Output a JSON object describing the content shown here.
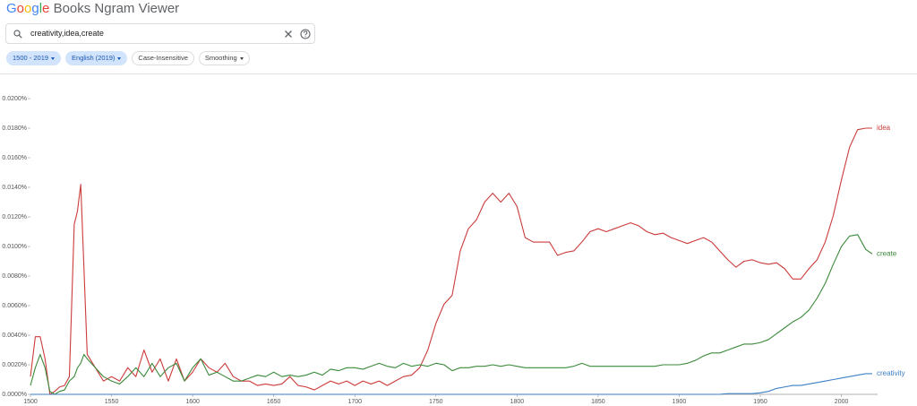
{
  "header": {
    "logo": "Google",
    "product": "Books Ngram Viewer"
  },
  "search": {
    "query": "creativity,idea,create"
  },
  "filters": [
    "1500 - 2019",
    "English (2019)",
    "Case-Insensitive",
    "Smoothing"
  ],
  "chart_data": {
    "type": "line",
    "x": [
      1500,
      1503,
      1506,
      1509,
      1512,
      1515,
      1518,
      1521,
      1524,
      1527,
      1529,
      1531,
      1533,
      1535,
      1540,
      1545,
      1550,
      1555,
      1560,
      1565,
      1570,
      1575,
      1580,
      1585,
      1590,
      1595,
      1600,
      1605,
      1610,
      1615,
      1620,
      1625,
      1630,
      1635,
      1640,
      1645,
      1650,
      1655,
      1660,
      1665,
      1670,
      1675,
      1680,
      1685,
      1690,
      1695,
      1700,
      1705,
      1710,
      1715,
      1720,
      1725,
      1730,
      1735,
      1740,
      1745,
      1750,
      1755,
      1760,
      1765,
      1770,
      1775,
      1780,
      1785,
      1790,
      1795,
      1800,
      1805,
      1810,
      1815,
      1820,
      1825,
      1830,
      1835,
      1840,
      1845,
      1850,
      1855,
      1860,
      1865,
      1870,
      1875,
      1880,
      1885,
      1890,
      1895,
      1900,
      1905,
      1910,
      1915,
      1920,
      1925,
      1930,
      1935,
      1940,
      1945,
      1950,
      1955,
      1960,
      1965,
      1970,
      1975,
      1980,
      1985,
      1990,
      1995,
      2000,
      2005,
      2010,
      2015,
      2019
    ],
    "series": [
      {
        "name": "idea",
        "color": "#cc3b3b",
        "values": [
          0.0012,
          0.0039,
          0.0039,
          0.0024,
          0,
          0.0002,
          0.0005,
          0.0006,
          0.0012,
          0.0115,
          0.0124,
          0.0142,
          0.0085,
          0.0027,
          0.0018,
          0.0009,
          0.0012,
          0.0009,
          0.0018,
          0.0012,
          0.003,
          0.0015,
          0.0024,
          0.0009,
          0.0024,
          0.0009,
          0.0015,
          0.0024,
          0.0018,
          0.0015,
          0.0021,
          0.0012,
          0.0009,
          0.0009,
          0.0006,
          0.0007,
          0.0006,
          0.0007,
          0.0012,
          0.0006,
          0.0005,
          0.0003,
          0.0006,
          0.0009,
          0.0007,
          0.0009,
          0.0006,
          0.0009,
          0.0007,
          0.0009,
          0.0006,
          0.0009,
          0.0012,
          0.0013,
          0.0018,
          0.003,
          0.0048,
          0.0061,
          0.0067,
          0.0097,
          0.0112,
          0.0118,
          0.013,
          0.0136,
          0.013,
          0.0136,
          0.0127,
          0.0106,
          0.0103,
          0.0103,
          0.0103,
          0.0094,
          0.0096,
          0.0097,
          0.0103,
          0.011,
          0.0112,
          0.011,
          0.0112,
          0.0114,
          0.0116,
          0.0114,
          0.011,
          0.0108,
          0.0109,
          0.0106,
          0.0104,
          0.0102,
          0.0104,
          0.0106,
          0.0103,
          0.0097,
          0.0091,
          0.0086,
          0.009,
          0.0091,
          0.0089,
          0.0088,
          0.0089,
          0.0085,
          0.0078,
          0.0078,
          0.0085,
          0.0091,
          0.0103,
          0.0121,
          0.0145,
          0.0167,
          0.0179,
          0.018,
          0.018
        ]
      },
      {
        "name": "create",
        "color": "#3b8a3b",
        "values": [
          0.0006,
          0.0018,
          0.0027,
          0.0018,
          0.0002,
          0,
          0.0002,
          0.0003,
          0.0009,
          0.0012,
          0.0018,
          0.0021,
          0.0027,
          0.0024,
          0.0018,
          0.0012,
          0.0009,
          0.0007,
          0.0012,
          0.0018,
          0.0012,
          0.0021,
          0.0012,
          0.0018,
          0.0021,
          0.0009,
          0.0018,
          0.0024,
          0.0013,
          0.0015,
          0.0012,
          0.0009,
          0.0009,
          0.0011,
          0.0013,
          0.0012,
          0.0015,
          0.0012,
          0.0013,
          0.0012,
          0.0013,
          0.0015,
          0.0013,
          0.0017,
          0.0016,
          0.0018,
          0.0018,
          0.0017,
          0.0019,
          0.0021,
          0.0019,
          0.0018,
          0.0021,
          0.0019,
          0.002,
          0.0019,
          0.0021,
          0.002,
          0.0016,
          0.0018,
          0.0018,
          0.0019,
          0.0019,
          0.002,
          0.0019,
          0.002,
          0.0019,
          0.0018,
          0.0018,
          0.0018,
          0.0018,
          0.0018,
          0.0018,
          0.0019,
          0.0021,
          0.0019,
          0.0019,
          0.0019,
          0.0019,
          0.0019,
          0.0019,
          0.0019,
          0.0019,
          0.0019,
          0.002,
          0.002,
          0.002,
          0.0021,
          0.0023,
          0.0026,
          0.0028,
          0.0028,
          0.003,
          0.0032,
          0.0034,
          0.0034,
          0.0035,
          0.0037,
          0.0041,
          0.0045,
          0.0049,
          0.0052,
          0.0057,
          0.0065,
          0.0075,
          0.0088,
          0.01,
          0.0107,
          0.0108,
          0.0098,
          0.0095
        ]
      },
      {
        "name": "creativity",
        "color": "#3d7fc4",
        "values": [
          0,
          0,
          0,
          0,
          0,
          0,
          0,
          0,
          0,
          0,
          0,
          0,
          0,
          0,
          0,
          0,
          0,
          0,
          0,
          0,
          0,
          0,
          0,
          0,
          0,
          0,
          0,
          0,
          0,
          0,
          0,
          0,
          0,
          0,
          0,
          0,
          0,
          0,
          0,
          0,
          0,
          0,
          0,
          0,
          0,
          0,
          0,
          0,
          0,
          0,
          0,
          0,
          0,
          0,
          0,
          0,
          0,
          0,
          0,
          0,
          0,
          0,
          0,
          0,
          0,
          0,
          0,
          0,
          0,
          0,
          0,
          0,
          0,
          0,
          0,
          0,
          0,
          0,
          0,
          0,
          0,
          0,
          0,
          0,
          0,
          0,
          0,
          0,
          0,
          0,
          0,
          0,
          5e-05,
          5e-05,
          5e-05,
          5e-05,
          0.0001,
          0.0002,
          0.0004,
          0.0005,
          0.0006,
          0.0006,
          0.0007,
          0.0008,
          0.0009,
          0.001,
          0.0011,
          0.0012,
          0.0013,
          0.0014,
          0.0014
        ]
      }
    ],
    "xlim": [
      1500,
      2019
    ],
    "xticks": [
      1500,
      1550,
      1600,
      1650,
      1700,
      1750,
      1800,
      1850,
      1900,
      1950,
      2000
    ],
    "ylim": [
      0,
      0.02
    ],
    "yticks": [
      {
        "value": 0,
        "label": "0.0000%"
      },
      {
        "value": 0.002,
        "label": "0.0020%"
      },
      {
        "value": 0.004,
        "label": "0.0040%"
      },
      {
        "value": 0.006,
        "label": "0.0060%"
      },
      {
        "value": 0.008,
        "label": "0.0080%"
      },
      {
        "value": 0.01,
        "label": "0.0100%"
      },
      {
        "value": 0.012,
        "label": "0.0120%"
      },
      {
        "value": 0.014,
        "label": "0.0140%"
      },
      {
        "value": 0.016,
        "label": "0.0160%"
      },
      {
        "value": 0.018,
        "label": "0.0180%"
      },
      {
        "value": 0.02,
        "label": "0.0200%"
      }
    ],
    "grid": false
  }
}
